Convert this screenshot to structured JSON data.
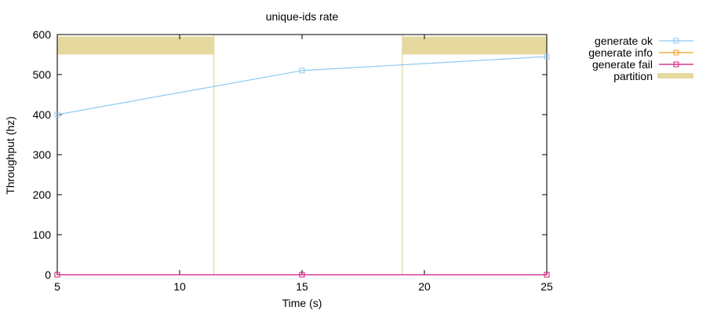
{
  "chart_data": {
    "type": "line",
    "title": "unique-ids rate",
    "xlabel": "Time (s)",
    "ylabel": "Throughput (hz)",
    "xlim": [
      5,
      25
    ],
    "ylim": [
      0,
      600
    ],
    "xticks": [
      5,
      10,
      15,
      20,
      25
    ],
    "yticks": [
      0,
      100,
      200,
      300,
      400,
      500,
      600
    ],
    "grid": false,
    "legend_position": "outside-top-right",
    "series": [
      {
        "name": "generate ok",
        "color": "#8ec9f0",
        "marker": "square",
        "x": [
          5,
          15,
          25
        ],
        "y": [
          400,
          510,
          545
        ]
      },
      {
        "name": "generate info",
        "color": "#f0a020",
        "marker": "square",
        "x": [],
        "y": []
      },
      {
        "name": "generate fail",
        "color": "#d0157c",
        "marker": "square",
        "x": [
          5,
          15,
          25
        ],
        "y": [
          0,
          0,
          0
        ]
      }
    ],
    "partitions": {
      "name": "partition",
      "color": "#e6d9a0",
      "intervals": [
        [
          5,
          11.4
        ],
        [
          19.1,
          25
        ]
      ]
    }
  }
}
